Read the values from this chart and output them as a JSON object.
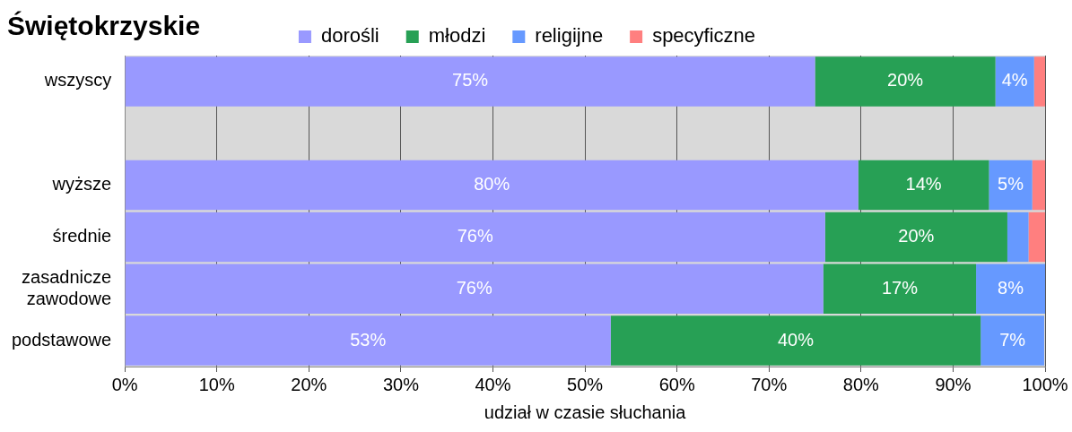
{
  "chart_data": {
    "type": "bar",
    "orientation": "horizontal",
    "stacked": true,
    "title": "Świętokrzyskie",
    "xlabel": "udział w czasie słuchania",
    "categories": [
      "wszyscy",
      null,
      "wyższe",
      "średnie",
      "zasadnicze\nzawodowe",
      "podstawowe"
    ],
    "series": [
      {
        "name": "dorośli",
        "color": "#9999ff",
        "values": [
          75,
          null,
          79.7,
          76.1,
          75.9,
          52.8
        ],
        "value_labels": [
          "75%",
          null,
          "80%",
          "76%",
          "76%",
          "53%"
        ]
      },
      {
        "name": "młodzi",
        "color": "#27a055",
        "values": [
          19.6,
          null,
          14.2,
          19.8,
          16.6,
          40.2
        ],
        "value_labels": [
          "20%",
          null,
          "14%",
          "20%",
          "17%",
          "40%"
        ]
      },
      {
        "name": "religijne",
        "color": "#6699ff",
        "values": [
          4.2,
          null,
          4.7,
          2.3,
          7.5,
          6.9
        ],
        "value_labels": [
          "4%",
          null,
          "5%",
          null,
          "8%",
          "7%"
        ]
      },
      {
        "name": "specyficzne",
        "color": "#ff7f7f",
        "values": [
          1.2,
          null,
          1.4,
          1.8,
          null,
          null
        ]
      }
    ],
    "xlim": [
      0,
      100
    ],
    "xticks": [
      {
        "value": 0,
        "label": "0%"
      },
      {
        "value": 10,
        "label": "10%"
      },
      {
        "value": 20,
        "label": "20%"
      },
      {
        "value": 30,
        "label": "30%"
      },
      {
        "value": 40,
        "label": "40%"
      },
      {
        "value": 50,
        "label": "50%"
      },
      {
        "value": 60,
        "label": "60%"
      },
      {
        "value": 70,
        "label": "70%"
      },
      {
        "value": 80,
        "label": "80%"
      },
      {
        "value": 90,
        "label": "90%"
      },
      {
        "value": 100,
        "label": "100%"
      }
    ],
    "grid": "x",
    "legend": "top"
  }
}
